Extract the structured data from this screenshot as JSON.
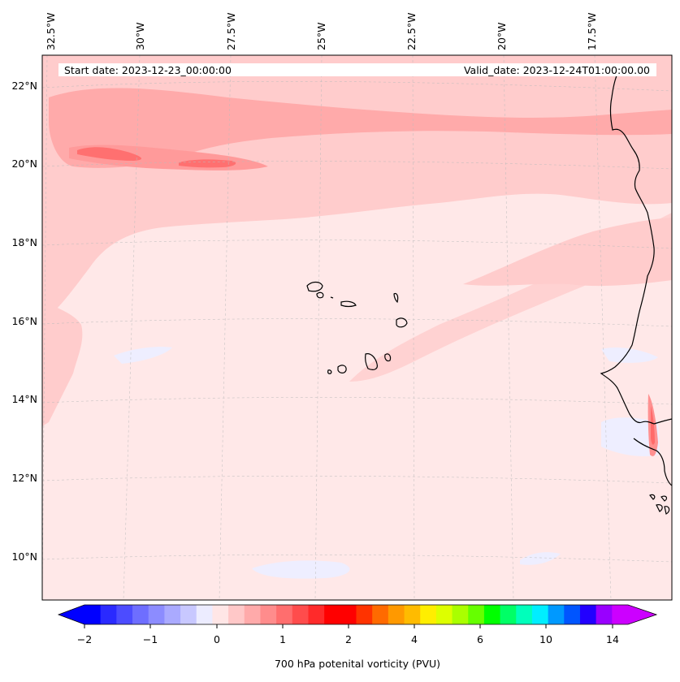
{
  "map": {
    "start_date": "Start date: 2023-12-23_00:00:00",
    "valid_date": "Valid_date: 2023-12-24T01:00:00.00",
    "lon_labels": [
      "32.5°W",
      "30°W",
      "27.5°W",
      "25°W",
      "22.5°W",
      "20°W",
      "17.5°W"
    ],
    "lat_labels": [
      "22°N",
      "20°N",
      "18°N",
      "16°N",
      "14°N",
      "12°N",
      "10°N"
    ],
    "gridlines": true,
    "coastline_color": "#000000",
    "background_color": "#ffe8e8"
  },
  "colorbar": {
    "label": "700 hPa potenital vorticity (PVU)",
    "tick_labels": [
      "−2",
      "−1",
      "0",
      "1",
      "2",
      "4",
      "6",
      "10",
      "14"
    ],
    "colors": [
      "#0000ff",
      "#2a2aff",
      "#4c4cff",
      "#6e6eff",
      "#8c8cff",
      "#aaaaff",
      "#c8c8ff",
      "#ececff",
      "#ffe6e6",
      "#ffc8c8",
      "#ffaaaa",
      "#ff8c8c",
      "#ff6e6e",
      "#ff4c4c",
      "#ff2a2a",
      "#ff0000",
      "#ff0000",
      "#ff3300",
      "#ff6a00",
      "#ff9900",
      "#ffbb00",
      "#ffee00",
      "#ddff00",
      "#aaff00",
      "#66ff00",
      "#00ff00",
      "#00ff66",
      "#00ffbb",
      "#00eeff",
      "#0099ff",
      "#0055ff",
      "#2200ff",
      "#9900ff",
      "#cc00ff"
    ],
    "extend_low_color": "#0000ff",
    "extend_high_color": "#cc00ff"
  }
}
